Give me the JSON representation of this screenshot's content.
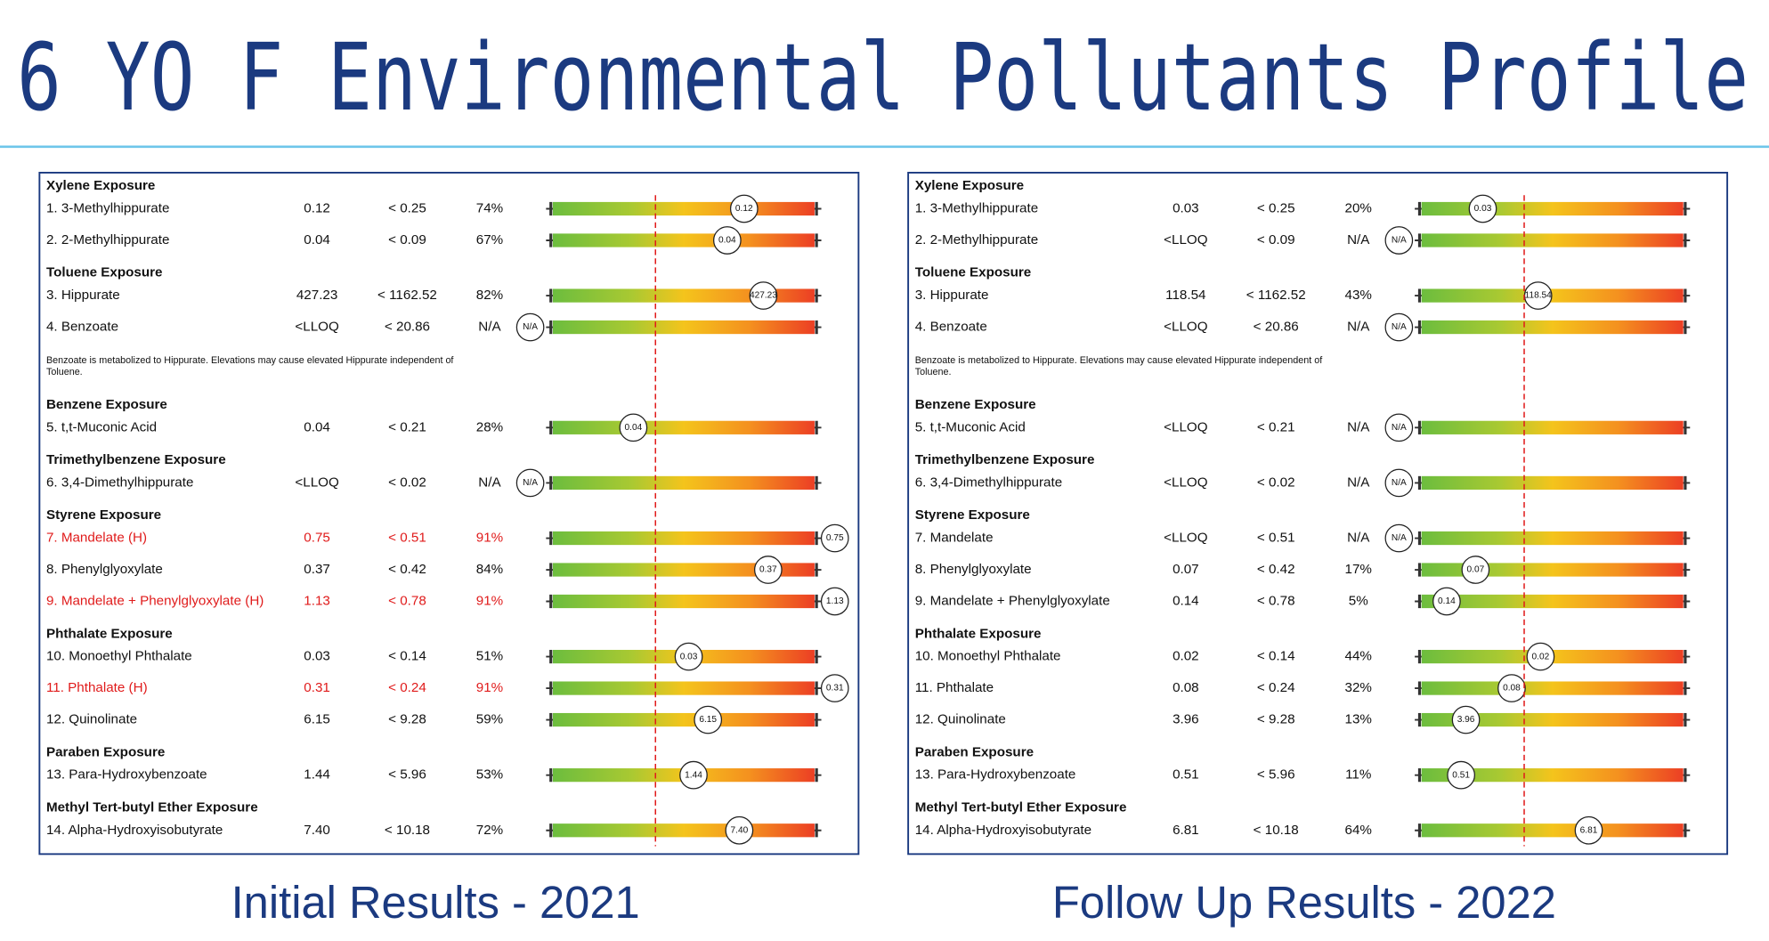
{
  "title": "6 YO F Environmental Pollutants Profile",
  "panels": [
    {
      "caption": "Initial Results - 2021",
      "groups": [
        {
          "heading": "Xylene Exposure",
          "rows": [
            {
              "label": "1. 3-Methylhippurate",
              "result": "0.12",
              "reference": "< 0.25",
              "percentile": "74%"
            },
            {
              "label": "2. 2-Methylhippurate",
              "result": "0.04",
              "reference": "< 0.09",
              "percentile": "67%"
            }
          ]
        },
        {
          "heading": "Toluene Exposure",
          "rows": [
            {
              "label": "3. Hippurate",
              "result": "427.23",
              "reference": "< 1162.52",
              "percentile": "82%"
            },
            {
              "label": "4. Benzoate",
              "result": "<LLOQ",
              "reference": "< 20.86",
              "percentile": "N/A"
            }
          ],
          "note": "Benzoate is metabolized to Hippurate.  Elevations may cause elevated Hippurate independent of Toluene."
        },
        {
          "heading": "Benzene Exposure",
          "rows": [
            {
              "label": "5. t,t-Muconic Acid",
              "result": "0.04",
              "reference": "< 0.21",
              "percentile": "28%"
            }
          ]
        },
        {
          "heading": "Trimethylbenzene Exposure",
          "rows": [
            {
              "label": "6. 3,4-Dimethylhippurate",
              "result": "<LLOQ",
              "reference": "< 0.02",
              "percentile": "N/A"
            }
          ]
        },
        {
          "heading": "Styrene Exposure",
          "rows": [
            {
              "label": "7. Mandelate (H)",
              "result": "0.75",
              "reference": "< 0.51",
              "percentile": "91%",
              "high": true
            },
            {
              "label": "8. Phenylglyoxylate",
              "result": "0.37",
              "reference": "< 0.42",
              "percentile": "84%"
            },
            {
              "label": "9. Mandelate + Phenylglyoxylate (H)",
              "result": "1.13",
              "reference": "< 0.78",
              "percentile": "91%",
              "high": true
            }
          ]
        },
        {
          "heading": "Phthalate Exposure",
          "rows": [
            {
              "label": "10. Monoethyl Phthalate",
              "result": "0.03",
              "reference": "< 0.14",
              "percentile": "51%"
            },
            {
              "label": "11. Phthalate (H)",
              "result": "0.31",
              "reference": "< 0.24",
              "percentile": "91%",
              "high": true
            },
            {
              "label": "12. Quinolinate",
              "result": "6.15",
              "reference": "< 9.28",
              "percentile": "59%"
            }
          ]
        },
        {
          "heading": "Paraben Exposure",
          "rows": [
            {
              "label": "13. Para-Hydroxybenzoate",
              "result": "1.44",
              "reference": "< 5.96",
              "percentile": "53%"
            }
          ]
        },
        {
          "heading": "Methyl Tert-butyl Ether Exposure",
          "rows": [
            {
              "label": "14. Alpha-Hydroxyisobutyrate",
              "result": "7.40",
              "reference": "< 10.18",
              "percentile": "72%"
            }
          ]
        }
      ]
    },
    {
      "caption": "Follow Up Results - 2022",
      "groups": [
        {
          "heading": "Xylene Exposure",
          "rows": [
            {
              "label": "1. 3-Methylhippurate",
              "result": "0.03",
              "reference": "< 0.25",
              "percentile": "20%"
            },
            {
              "label": "2. 2-Methylhippurate",
              "result": "<LLOQ",
              "reference": "< 0.09",
              "percentile": "N/A"
            }
          ]
        },
        {
          "heading": "Toluene Exposure",
          "rows": [
            {
              "label": "3. Hippurate",
              "result": "118.54",
              "reference": "< 1162.52",
              "percentile": "43%"
            },
            {
              "label": "4. Benzoate",
              "result": "<LLOQ",
              "reference": "< 20.86",
              "percentile": "N/A"
            }
          ],
          "note": "Benzoate is metabolized to Hippurate.  Elevations may cause elevated Hippurate independent of Toluene."
        },
        {
          "heading": "Benzene Exposure",
          "rows": [
            {
              "label": "5. t,t-Muconic Acid",
              "result": "<LLOQ",
              "reference": "< 0.21",
              "percentile": "N/A"
            }
          ]
        },
        {
          "heading": "Trimethylbenzene Exposure",
          "rows": [
            {
              "label": "6. 3,4-Dimethylhippurate",
              "result": "<LLOQ",
              "reference": "< 0.02",
              "percentile": "N/A"
            }
          ]
        },
        {
          "heading": "Styrene Exposure",
          "rows": [
            {
              "label": "7. Mandelate",
              "result": "<LLOQ",
              "reference": "< 0.51",
              "percentile": "N/A"
            },
            {
              "label": "8. Phenylglyoxylate",
              "result": "0.07",
              "reference": "< 0.42",
              "percentile": "17%"
            },
            {
              "label": "9. Mandelate + Phenylglyoxylate",
              "result": "0.14",
              "reference": "< 0.78",
              "percentile": "5%"
            }
          ]
        },
        {
          "heading": "Phthalate Exposure",
          "rows": [
            {
              "label": "10. Monoethyl Phthalate",
              "result": "0.02",
              "reference": "< 0.14",
              "percentile": "44%"
            },
            {
              "label": "11. Phthalate",
              "result": "0.08",
              "reference": "< 0.24",
              "percentile": "32%"
            },
            {
              "label": "12. Quinolinate",
              "result": "3.96",
              "reference": "< 9.28",
              "percentile": "13%"
            }
          ]
        },
        {
          "heading": "Paraben Exposure",
          "rows": [
            {
              "label": "13. Para-Hydroxybenzoate",
              "result": "0.51",
              "reference": "< 5.96",
              "percentile": "11%"
            }
          ]
        },
        {
          "heading": "Methyl Tert-butyl Ether Exposure",
          "rows": [
            {
              "label": "14. Alpha-Hydroxyisobutyrate",
              "result": "6.81",
              "reference": "< 10.18",
              "percentile": "64%"
            }
          ]
        }
      ]
    }
  ]
}
